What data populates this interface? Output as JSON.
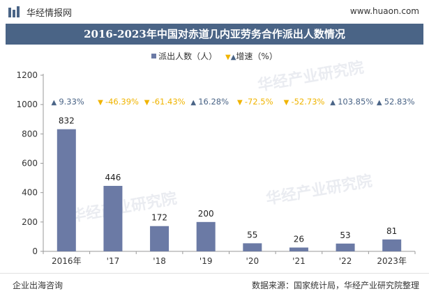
{
  "header": {
    "brand": "华经情报网",
    "site": "www.huaon.com"
  },
  "watermark": "华经产业研究院",
  "chart_data": {
    "type": "bar",
    "title": "2016-2023年中国对赤道几内亚劳务合作派出人数情况",
    "categories": [
      "2016年",
      "'17",
      "'18",
      "'19",
      "'20",
      "'21",
      "'22",
      "2023年"
    ],
    "series": [
      {
        "name": "派出人数（人）",
        "type": "bar",
        "values": [
          832,
          446,
          172,
          200,
          55,
          26,
          53,
          81
        ],
        "labels": [
          "832",
          "446",
          "172",
          "200",
          "55",
          "26",
          "53",
          "81"
        ]
      },
      {
        "name": "增速（%）",
        "type": "annotation",
        "values": [
          9.33,
          -46.39,
          -61.43,
          16.28,
          -72.5,
          -52.73,
          103.85,
          52.83
        ],
        "labels": [
          "9.33%",
          "-46.39%",
          "-61.43%",
          "16.28%",
          "-72.5%",
          "-52.73%",
          "103.85%",
          "52.83%"
        ]
      }
    ],
    "yticks": [
      "0",
      "200",
      "400",
      "600",
      "800",
      "1000",
      "1200"
    ],
    "ylim": [
      0,
      1200
    ],
    "legend_position": "top",
    "grid": false,
    "colors": {
      "bar": "#6b7aa5",
      "up": "#4a6486",
      "down": "#f0b400",
      "title_band": "#4a6486"
    }
  },
  "footer": {
    "left": "企业出海咨询",
    "right": "数据来源：国家统计局，华经产业研究院整理"
  }
}
